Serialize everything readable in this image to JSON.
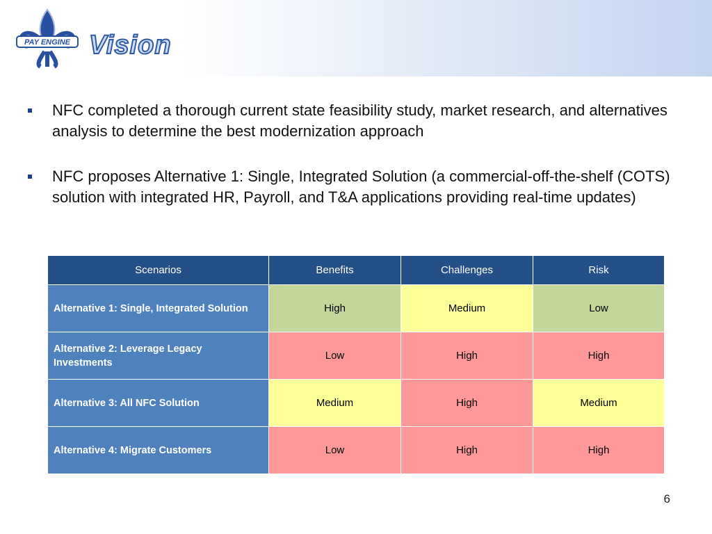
{
  "header": {
    "logo_text": "PAY ENGINE",
    "title": "Vision"
  },
  "bullets": [
    "NFC completed a thorough current state feasibility study, market research, and alternatives analysis to determine the best modernization approach",
    "NFC proposes Alternative 1: Single, Integrated Solution (a commercial-off-the-shelf (COTS) solution with integrated HR, Payroll, and T&A applications providing real-time updates)"
  ],
  "table": {
    "columns": [
      "Scenarios",
      "Benefits",
      "Challenges",
      "Risk"
    ],
    "rows": [
      {
        "scenario": "Alternative 1: Single, Integrated Solution",
        "cells": [
          {
            "text": "High",
            "color": "#c4d79b"
          },
          {
            "text": "Medium",
            "color": "#ffff99"
          },
          {
            "text": "Low",
            "color": "#c4d79b"
          }
        ]
      },
      {
        "scenario": "Alternative 2: Leverage Legacy Investments",
        "cells": [
          {
            "text": "Low",
            "color": "#ff9999"
          },
          {
            "text": "High",
            "color": "#ff9999"
          },
          {
            "text": "High",
            "color": "#ff9999"
          }
        ]
      },
      {
        "scenario": "Alternative 3: All NFC Solution",
        "cells": [
          {
            "text": "Medium",
            "color": "#ffff99"
          },
          {
            "text": "High",
            "color": "#ff9999"
          },
          {
            "text": "Medium",
            "color": "#ffff99"
          }
        ]
      },
      {
        "scenario": "Alternative 4: Migrate Customers",
        "cells": [
          {
            "text": "Low",
            "color": "#ff9999"
          },
          {
            "text": "High",
            "color": "#ff9999"
          },
          {
            "text": "High",
            "color": "#ff9999"
          }
        ]
      }
    ]
  },
  "page_number": "6"
}
